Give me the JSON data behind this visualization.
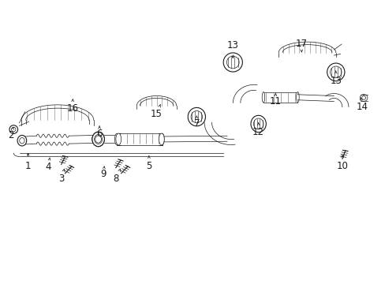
{
  "bg": "#ffffff",
  "lc": "#1a1a1a",
  "fs": 8.5,
  "labels": {
    "1": [
      0.068,
      0.415,
      0.068,
      0.47
    ],
    "2": [
      0.022,
      0.525,
      0.03,
      0.555
    ],
    "3": [
      0.155,
      0.37,
      0.163,
      0.405
    ],
    "4": [
      0.12,
      0.41,
      0.125,
      0.445
    ],
    "5": [
      0.385,
      0.415,
      0.385,
      0.46
    ],
    "6": [
      0.255,
      0.53,
      0.255,
      0.558
    ],
    "7": [
      0.51,
      0.565,
      0.51,
      0.595
    ],
    "8": [
      0.298,
      0.37,
      0.31,
      0.405
    ],
    "9": [
      0.265,
      0.385,
      0.268,
      0.415
    ],
    "10": [
      0.892,
      0.415,
      0.892,
      0.455
    ],
    "11": [
      0.717,
      0.645,
      0.717,
      0.675
    ],
    "12": [
      0.672,
      0.535,
      0.672,
      0.57
    ],
    "13a": [
      0.605,
      0.845,
      0.605,
      0.79
    ],
    "13b": [
      0.875,
      0.72,
      0.875,
      0.755
    ],
    "14": [
      0.945,
      0.625,
      0.94,
      0.66
    ],
    "15": [
      0.405,
      0.6,
      0.415,
      0.635
    ],
    "16": [
      0.185,
      0.62,
      0.185,
      0.655
    ],
    "17": [
      0.785,
      0.85,
      0.785,
      0.82
    ]
  }
}
